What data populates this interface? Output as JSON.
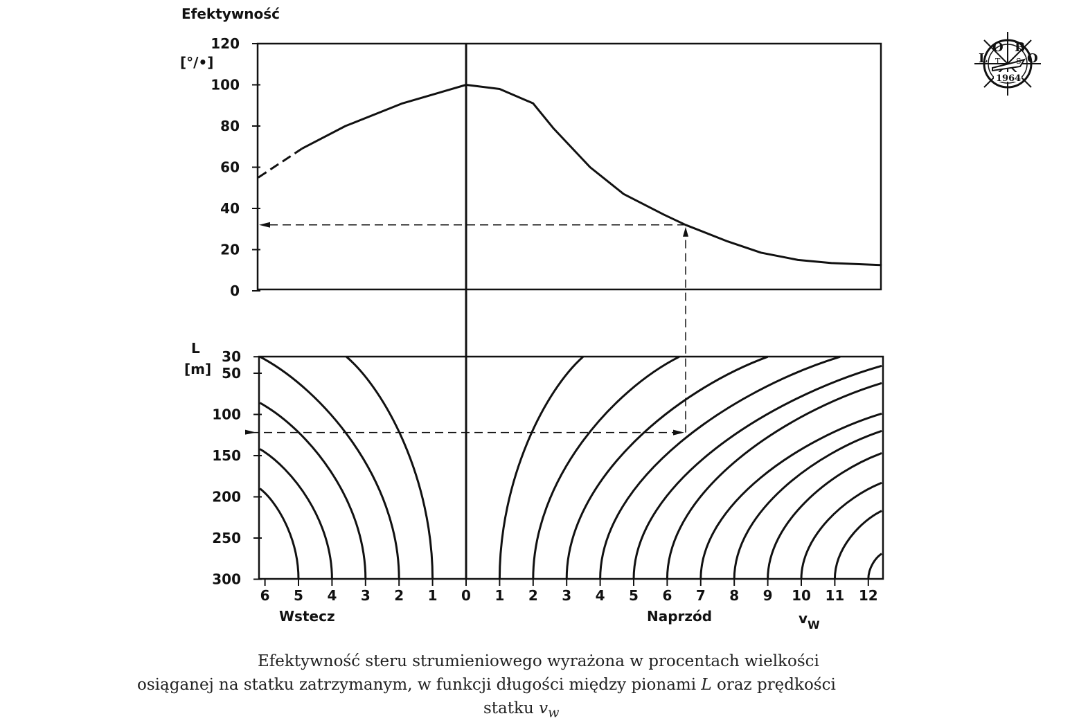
{
  "chart_data": [
    {
      "type": "line",
      "title": "Efektywność",
      "ylabel": "Efektywność",
      "yunit": "[°/•]",
      "ylim": [
        0,
        120
      ],
      "yticks": [
        0,
        20,
        40,
        60,
        80,
        100,
        120
      ],
      "xlim": [
        -6.2,
        12.4
      ],
      "note_x": "negative = Wstecz (astern), positive = Naprzód (ahead)",
      "series": [
        {
          "name": "efficiency",
          "dashed_until_x": -4.9,
          "x": [
            -6.2,
            -4.9,
            -3.6,
            -1.9,
            0,
            1,
            2,
            2.6,
            3.7,
            4.7,
            5.9,
            6.55,
            7.8,
            8.8,
            9.9,
            10.9,
            12.4
          ],
          "y": [
            55,
            69,
            80,
            91,
            100,
            98,
            91,
            79,
            60,
            47,
            37,
            32,
            24,
            18.5,
            15,
            13.5,
            12.5
          ]
        }
      ],
      "example": {
        "v": 6.55,
        "efficiency": 32,
        "L": 122
      }
    },
    {
      "type": "line",
      "ylabel": "L",
      "yunit": "[m]",
      "ylim": [
        30,
        300
      ],
      "yticks": [
        30,
        50,
        100,
        150,
        200,
        250,
        300
      ],
      "xlabel": "vw",
      "xlabel_left": "Wstecz",
      "xlabel_right": "Naprzód",
      "xticks": [
        {
          "v": -6,
          "label": "6"
        },
        {
          "v": -5,
          "label": "5"
        },
        {
          "v": -4,
          "label": "4"
        },
        {
          "v": -3,
          "label": "3"
        },
        {
          "v": -2,
          "label": "2"
        },
        {
          "v": -1,
          "label": "1"
        },
        {
          "v": 0,
          "label": "0"
        },
        {
          "v": 1,
          "label": "1"
        },
        {
          "v": 2,
          "label": "2"
        },
        {
          "v": 3,
          "label": "3"
        },
        {
          "v": 4,
          "label": "4"
        },
        {
          "v": 5,
          "label": "5"
        },
        {
          "v": 6,
          "label": "6"
        },
        {
          "v": 7,
          "label": "7"
        },
        {
          "v": 8,
          "label": "8"
        },
        {
          "v": 9,
          "label": "9"
        },
        {
          "v": 10,
          "label": "10"
        },
        {
          "v": 11,
          "label": "11"
        },
        {
          "v": 12,
          "label": "12"
        }
      ],
      "curves": [
        {
          "v": -5,
          "start": [
            -6.15,
            190
          ]
        },
        {
          "v": -4,
          "start": [
            -6.15,
            142
          ]
        },
        {
          "v": -3,
          "start": [
            -6.15,
            86
          ]
        },
        {
          "v": -2,
          "start": [
            -6.15,
            30
          ]
        },
        {
          "v": -1,
          "start": [
            -3.57,
            30
          ]
        },
        {
          "v": 1,
          "start": [
            3.49,
            30
          ]
        },
        {
          "v": 2,
          "start": [
            6.36,
            30
          ]
        },
        {
          "v": 3,
          "start": [
            9.0,
            30
          ]
        },
        {
          "v": 4,
          "start": [
            11.16,
            30
          ]
        },
        {
          "v": 5,
          "start": [
            12.4,
            41
          ]
        },
        {
          "v": 6,
          "start": [
            12.4,
            62
          ]
        },
        {
          "v": 7,
          "start": [
            12.4,
            99
          ]
        },
        {
          "v": 8,
          "start": [
            12.4,
            120
          ]
        },
        {
          "v": 9,
          "start": [
            12.4,
            147
          ]
        },
        {
          "v": 10,
          "start": [
            12.4,
            183
          ]
        },
        {
          "v": 11,
          "start": [
            12.4,
            217
          ]
        },
        {
          "v": 12,
          "start": [
            12.4,
            269
          ]
        }
      ]
    }
  ],
  "labels": {
    "y_title": "Efektywność",
    "y_unit": "[°/•]",
    "l_title": "L",
    "l_unit": "[m]",
    "astern": "Wstecz",
    "ahead": "Naprzód",
    "speed": "v",
    "speed_sub": "W"
  },
  "caption": {
    "line1": "Efektywność steru strumieniowego wyrażona w procentach wielkości",
    "line2_a": "osiąganej na statku zatrzymanym, w funkcji długości między pionami ",
    "line2_L": "L",
    "line2_b": " oraz prędkości",
    "line3_a": "statku ",
    "line3_v": "v",
    "line3_sub": "w"
  },
  "logo": {
    "letters": [
      "L",
      "O",
      "B",
      "O"
    ],
    "inner": [
      "T",
      "S"
    ],
    "year": "1964"
  }
}
